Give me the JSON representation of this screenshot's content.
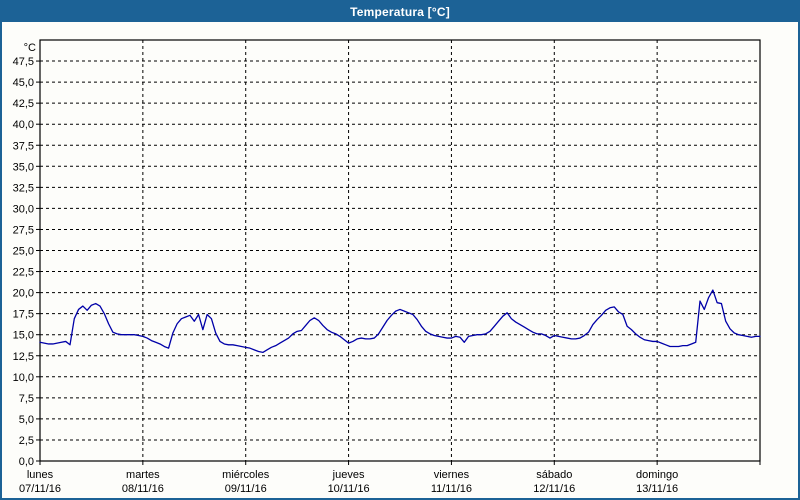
{
  "window": {
    "title": "Temperatura [°C]"
  },
  "colors": {
    "titlebar_bg": "#1c6296",
    "window_border": "#1c6296",
    "series_line": "#0000a8",
    "grid": "#000000",
    "frame": "#000000",
    "plot_bg": "#fdfdfa"
  },
  "chart_data": {
    "type": "line",
    "title": "Temperatura [°C]",
    "y_unit_label": "°C",
    "y_min": 0,
    "y_max": 50,
    "y_tick_step": 2.5,
    "grid": "dashed",
    "legend": "none",
    "y_ticks": [
      {
        "v": 47.5,
        "label": "47,5"
      },
      {
        "v": 45.0,
        "label": "45,0"
      },
      {
        "v": 42.5,
        "label": "42,5"
      },
      {
        "v": 40.0,
        "label": "40,0"
      },
      {
        "v": 37.5,
        "label": "37,5"
      },
      {
        "v": 35.0,
        "label": "35,0"
      },
      {
        "v": 32.5,
        "label": "32,5"
      },
      {
        "v": 30.0,
        "label": "30,0"
      },
      {
        "v": 27.5,
        "label": "27,5"
      },
      {
        "v": 25.0,
        "label": "25,0"
      },
      {
        "v": 22.5,
        "label": "22,5"
      },
      {
        "v": 20.0,
        "label": "20,0"
      },
      {
        "v": 17.5,
        "label": "17,5"
      },
      {
        "v": 15.0,
        "label": "15,0"
      },
      {
        "v": 12.5,
        "label": "12,5"
      },
      {
        "v": 10.0,
        "label": "10,0"
      },
      {
        "v": 7.5,
        "label": "7,5"
      },
      {
        "v": 5.0,
        "label": "5,0"
      },
      {
        "v": 2.5,
        "label": "2,5"
      },
      {
        "v": 0.0,
        "label": "0,0"
      }
    ],
    "x_days": [
      {
        "name": "lunes",
        "date": "07/11/16"
      },
      {
        "name": "martes",
        "date": "08/11/16"
      },
      {
        "name": "miércoles",
        "date": "09/11/16"
      },
      {
        "name": "jueves",
        "date": "10/11/16"
      },
      {
        "name": "viernes",
        "date": "11/11/16"
      },
      {
        "name": "sábado",
        "date": "12/11/16"
      },
      {
        "name": "domingo",
        "date": "13/11/16"
      }
    ],
    "series": [
      {
        "name": "Temperatura",
        "color": "#0000a8",
        "sampling": "hourly",
        "values": [
          14.1,
          14.0,
          13.9,
          13.9,
          14.0,
          14.1,
          14.2,
          13.8,
          16.9,
          18.0,
          18.4,
          17.9,
          18.5,
          18.7,
          18.4,
          17.5,
          16.3,
          15.3,
          15.1,
          15.0,
          15.0,
          15.0,
          15.0,
          14.9,
          14.8,
          14.6,
          14.3,
          14.1,
          13.9,
          13.6,
          13.4,
          15.2,
          16.3,
          16.9,
          17.1,
          17.3,
          16.6,
          17.4,
          15.6,
          17.4,
          16.9,
          15.2,
          14.2,
          13.9,
          13.8,
          13.8,
          13.7,
          13.6,
          13.5,
          13.4,
          13.2,
          13.0,
          12.9,
          13.2,
          13.5,
          13.7,
          14.0,
          14.3,
          14.6,
          15.1,
          15.4,
          15.5,
          16.1,
          16.7,
          17.0,
          16.7,
          16.1,
          15.6,
          15.3,
          15.1,
          14.8,
          14.4,
          14.0,
          14.2,
          14.5,
          14.6,
          14.5,
          14.5,
          14.6,
          15.1,
          15.9,
          16.7,
          17.3,
          17.8,
          18.0,
          17.8,
          17.6,
          17.4,
          16.8,
          16.0,
          15.4,
          15.1,
          14.9,
          14.8,
          14.7,
          14.6,
          14.6,
          14.8,
          14.7,
          14.1,
          14.8,
          14.9,
          15.0,
          15.0,
          15.1,
          15.4,
          16.0,
          16.6,
          17.2,
          17.6,
          16.9,
          16.5,
          16.2,
          15.9,
          15.6,
          15.3,
          15.1,
          15.1,
          14.9,
          14.6,
          14.9,
          14.8,
          14.7,
          14.6,
          14.5,
          14.5,
          14.6,
          14.9,
          15.3,
          16.2,
          16.8,
          17.3,
          17.9,
          18.2,
          18.3,
          17.7,
          17.4,
          16.0,
          15.6,
          15.1,
          14.7,
          14.4,
          14.3,
          14.2,
          14.2,
          14.0,
          13.8,
          13.6,
          13.6,
          13.6,
          13.7,
          13.7,
          13.9,
          14.1,
          19.0,
          18.0,
          19.4,
          20.3,
          18.8,
          18.7,
          16.6,
          15.7,
          15.2,
          15.0,
          14.9,
          14.8,
          14.7,
          14.8,
          14.8
        ]
      }
    ]
  }
}
